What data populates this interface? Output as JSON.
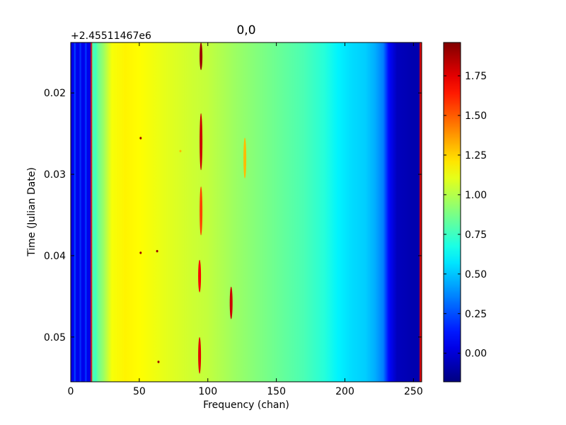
{
  "chart_data": {
    "type": "heatmap",
    "title": "0,0",
    "xlabel": "Frequency (chan)",
    "ylabel": "Time (Julian Date)",
    "y_offset_label": "+2.45511467e6",
    "xlim": [
      0,
      256
    ],
    "ylim": [
      0.0555,
      0.0138
    ],
    "x_ticks": [
      0,
      50,
      100,
      150,
      200,
      250
    ],
    "x_tick_labels": [
      "0",
      "50",
      "100",
      "150",
      "200",
      "250"
    ],
    "y_ticks": [
      0.02,
      0.03,
      0.04,
      0.05
    ],
    "y_tick_labels": [
      "0.02",
      "0.03",
      "0.04",
      "0.05"
    ],
    "colorbar": {
      "colormap": "jet",
      "vmin": -0.18,
      "vmax": 1.96,
      "ticks": [
        0.0,
        0.25,
        0.5,
        0.75,
        1.0,
        1.25,
        1.5,
        1.75
      ],
      "tick_labels": [
        "0.00",
        "0.25",
        "0.50",
        "0.75",
        "1.00",
        "1.25",
        "1.50",
        "1.75"
      ]
    },
    "spectrum_profile": [
      [
        0,
        0.05
      ],
      [
        2,
        0.05
      ],
      [
        3,
        0.25
      ],
      [
        4,
        0.05
      ],
      [
        6,
        0.05
      ],
      [
        7,
        0.2
      ],
      [
        8,
        0.05
      ],
      [
        10,
        0.05
      ],
      [
        11,
        0.22
      ],
      [
        12,
        0.05
      ],
      [
        14,
        0.05
      ],
      [
        15,
        1.75
      ],
      [
        16,
        0.8
      ],
      [
        18,
        0.75
      ],
      [
        20,
        0.85
      ],
      [
        24,
        0.95
      ],
      [
        30,
        1.14
      ],
      [
        40,
        1.18
      ],
      [
        50,
        1.16
      ],
      [
        70,
        1.1
      ],
      [
        90,
        1.05
      ],
      [
        100,
        1.03
      ],
      [
        120,
        0.95
      ],
      [
        150,
        0.85
      ],
      [
        170,
        0.78
      ],
      [
        185,
        0.7
      ],
      [
        195,
        0.6
      ],
      [
        205,
        0.55
      ],
      [
        215,
        0.52
      ],
      [
        222,
        0.45
      ],
      [
        228,
        0.35
      ],
      [
        232,
        0.1
      ],
      [
        238,
        -0.05
      ],
      [
        250,
        -0.08
      ],
      [
        254,
        -0.08
      ],
      [
        255,
        1.75
      ],
      [
        256,
        1.75
      ]
    ],
    "features": [
      {
        "x": 95,
        "t_start": 0.0138,
        "t_end": 0.0172,
        "value": 1.9
      },
      {
        "x": 95,
        "t_start": 0.0225,
        "t_end": 0.0295,
        "value": 1.8
      },
      {
        "x": 95,
        "t_start": 0.0315,
        "t_end": 0.0375,
        "value": 1.55
      },
      {
        "x": 94,
        "t_start": 0.0405,
        "t_end": 0.0445,
        "value": 1.7
      },
      {
        "x": 117,
        "t_start": 0.0438,
        "t_end": 0.0478,
        "value": 1.8
      },
      {
        "x": 127,
        "t_start": 0.0255,
        "t_end": 0.0305,
        "value": 1.3
      },
      {
        "x": 94,
        "t_start": 0.05,
        "t_end": 0.0545,
        "value": 1.75
      },
      {
        "x": 51,
        "t_start": 0.0254,
        "t_end": 0.0257,
        "value": 1.9
      },
      {
        "x": 51,
        "t_start": 0.0395,
        "t_end": 0.0398,
        "value": 1.9
      },
      {
        "x": 63,
        "t_start": 0.0393,
        "t_end": 0.0396,
        "value": 1.9
      },
      {
        "x": 64,
        "t_start": 0.0529,
        "t_end": 0.0532,
        "value": 1.9
      },
      {
        "x": 80,
        "t_start": 0.027,
        "t_end": 0.0273,
        "value": 1.3
      }
    ]
  }
}
